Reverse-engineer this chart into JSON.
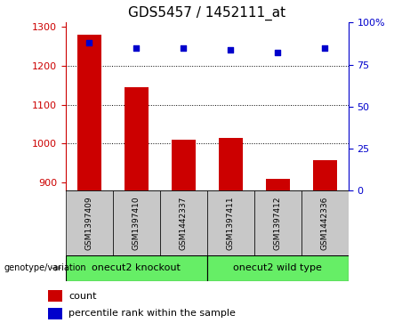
{
  "title": "GDS5457 / 1452111_at",
  "samples": [
    "GSM1397409",
    "GSM1397410",
    "GSM1442337",
    "GSM1397411",
    "GSM1397412",
    "GSM1442336"
  ],
  "counts": [
    1280,
    1145,
    1010,
    1015,
    910,
    958
  ],
  "percentiles": [
    88,
    85,
    85,
    84,
    82,
    85
  ],
  "group_labels": [
    "onecut2 knockout",
    "onecut2 wild type"
  ],
  "bar_color": "#cc0000",
  "dot_color": "#0000cc",
  "ylim_left": [
    880,
    1310
  ],
  "ylim_right": [
    0,
    100
  ],
  "yticks_left": [
    900,
    1000,
    1100,
    1200,
    1300
  ],
  "yticks_right": [
    0,
    25,
    50,
    75,
    100
  ],
  "grid_values": [
    1200,
    1100,
    1000
  ],
  "bar_width": 0.5,
  "bg_color": "#ffffff",
  "axis_color_left": "#cc0000",
  "axis_color_right": "#0000cc",
  "title_fontsize": 11,
  "tick_label_area_color": "#c8c8c8",
  "group_box_color": "#66ee66"
}
